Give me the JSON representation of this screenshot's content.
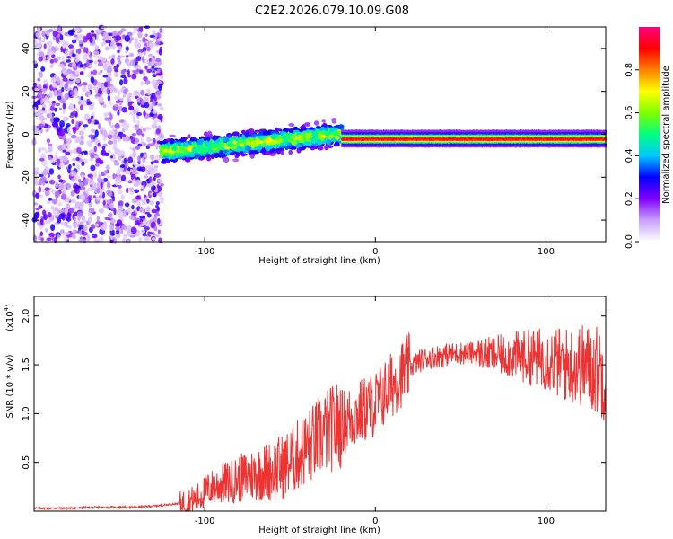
{
  "title": "C2E2.2026.079.10.09.G08",
  "chart_data": [
    {
      "type": "heatmap",
      "title": "C2E2.2026.079.10.09.G08",
      "xlabel": "Height of straight line (km)",
      "ylabel": "Frequency (Hz)",
      "xlim": [
        -200,
        135
      ],
      "ylim": [
        -50,
        50
      ],
      "xticks": [
        -100,
        0,
        100
      ],
      "yticks": [
        -40,
        -20,
        0,
        20,
        40
      ],
      "grid": false,
      "colorbar": {
        "label": "Normalized spectral amplitude",
        "range": [
          0,
          1
        ],
        "ticks": [
          0.0,
          0.2,
          0.4,
          0.6,
          0.8
        ],
        "colors": [
          "#ffffff",
          "#c8a0ff",
          "#8000ff",
          "#0000ff",
          "#00c8ff",
          "#00ff80",
          "#80ff00",
          "#ffff00",
          "#ff8000",
          "#ff0000",
          "#ff0080"
        ]
      },
      "description_regions": [
        {
          "x_range": [
            -200,
            -125
          ],
          "freq_range": [
            -50,
            50
          ],
          "amplitude": 0.1
        },
        {
          "x_range": [
            -125,
            -20
          ],
          "freq_center": 0,
          "freq_spread": 10,
          "amplitude": 0.3
        },
        {
          "x_range": [
            -20,
            135
          ],
          "freq_center": -2,
          "freq_spread": 2,
          "amplitude": 0.9
        }
      ]
    },
    {
      "type": "line",
      "xlabel": "Height of straight line (km)",
      "ylabel": "SNR (10 * v/v)",
      "ylabel_scale": "(x10",
      "ylabel_exponent": "4",
      "xlim": [
        -200,
        135
      ],
      "ylim": [
        0,
        2.2
      ],
      "xticks": [
        -100,
        0,
        100
      ],
      "yticks": [
        0.5,
        1.0,
        1.5,
        2.0
      ],
      "ytick_labels": [
        "0.5",
        "1.0",
        "1.5",
        "2.0"
      ],
      "series": [
        {
          "name": "SNR",
          "color": "#ee3333",
          "x": [
            -200,
            -180,
            -160,
            -140,
            -125,
            -115,
            -105,
            -100,
            -95,
            -90,
            -85,
            -80,
            -75,
            -70,
            -65,
            -60,
            -55,
            -50,
            -45,
            -40,
            -35,
            -30,
            -25,
            -20,
            -15,
            -10,
            -5,
            0,
            5,
            10,
            15,
            20,
            25,
            30,
            40,
            50,
            60,
            70,
            80,
            90,
            100,
            110,
            120,
            130,
            135
          ],
          "values": [
            0.03,
            0.03,
            0.04,
            0.04,
            0.06,
            0.08,
            0.12,
            0.2,
            0.25,
            0.28,
            0.3,
            0.33,
            0.36,
            0.38,
            0.4,
            0.42,
            0.45,
            0.5,
            0.58,
            0.65,
            0.72,
            0.8,
            0.85,
            0.9,
            0.95,
            1.0,
            1.05,
            1.1,
            1.2,
            1.3,
            1.4,
            1.48,
            1.53,
            1.57,
            1.6,
            1.62,
            1.62,
            1.6,
            1.6,
            1.58,
            1.57,
            1.5,
            1.5,
            1.45,
            1.4
          ]
        }
      ]
    }
  ]
}
